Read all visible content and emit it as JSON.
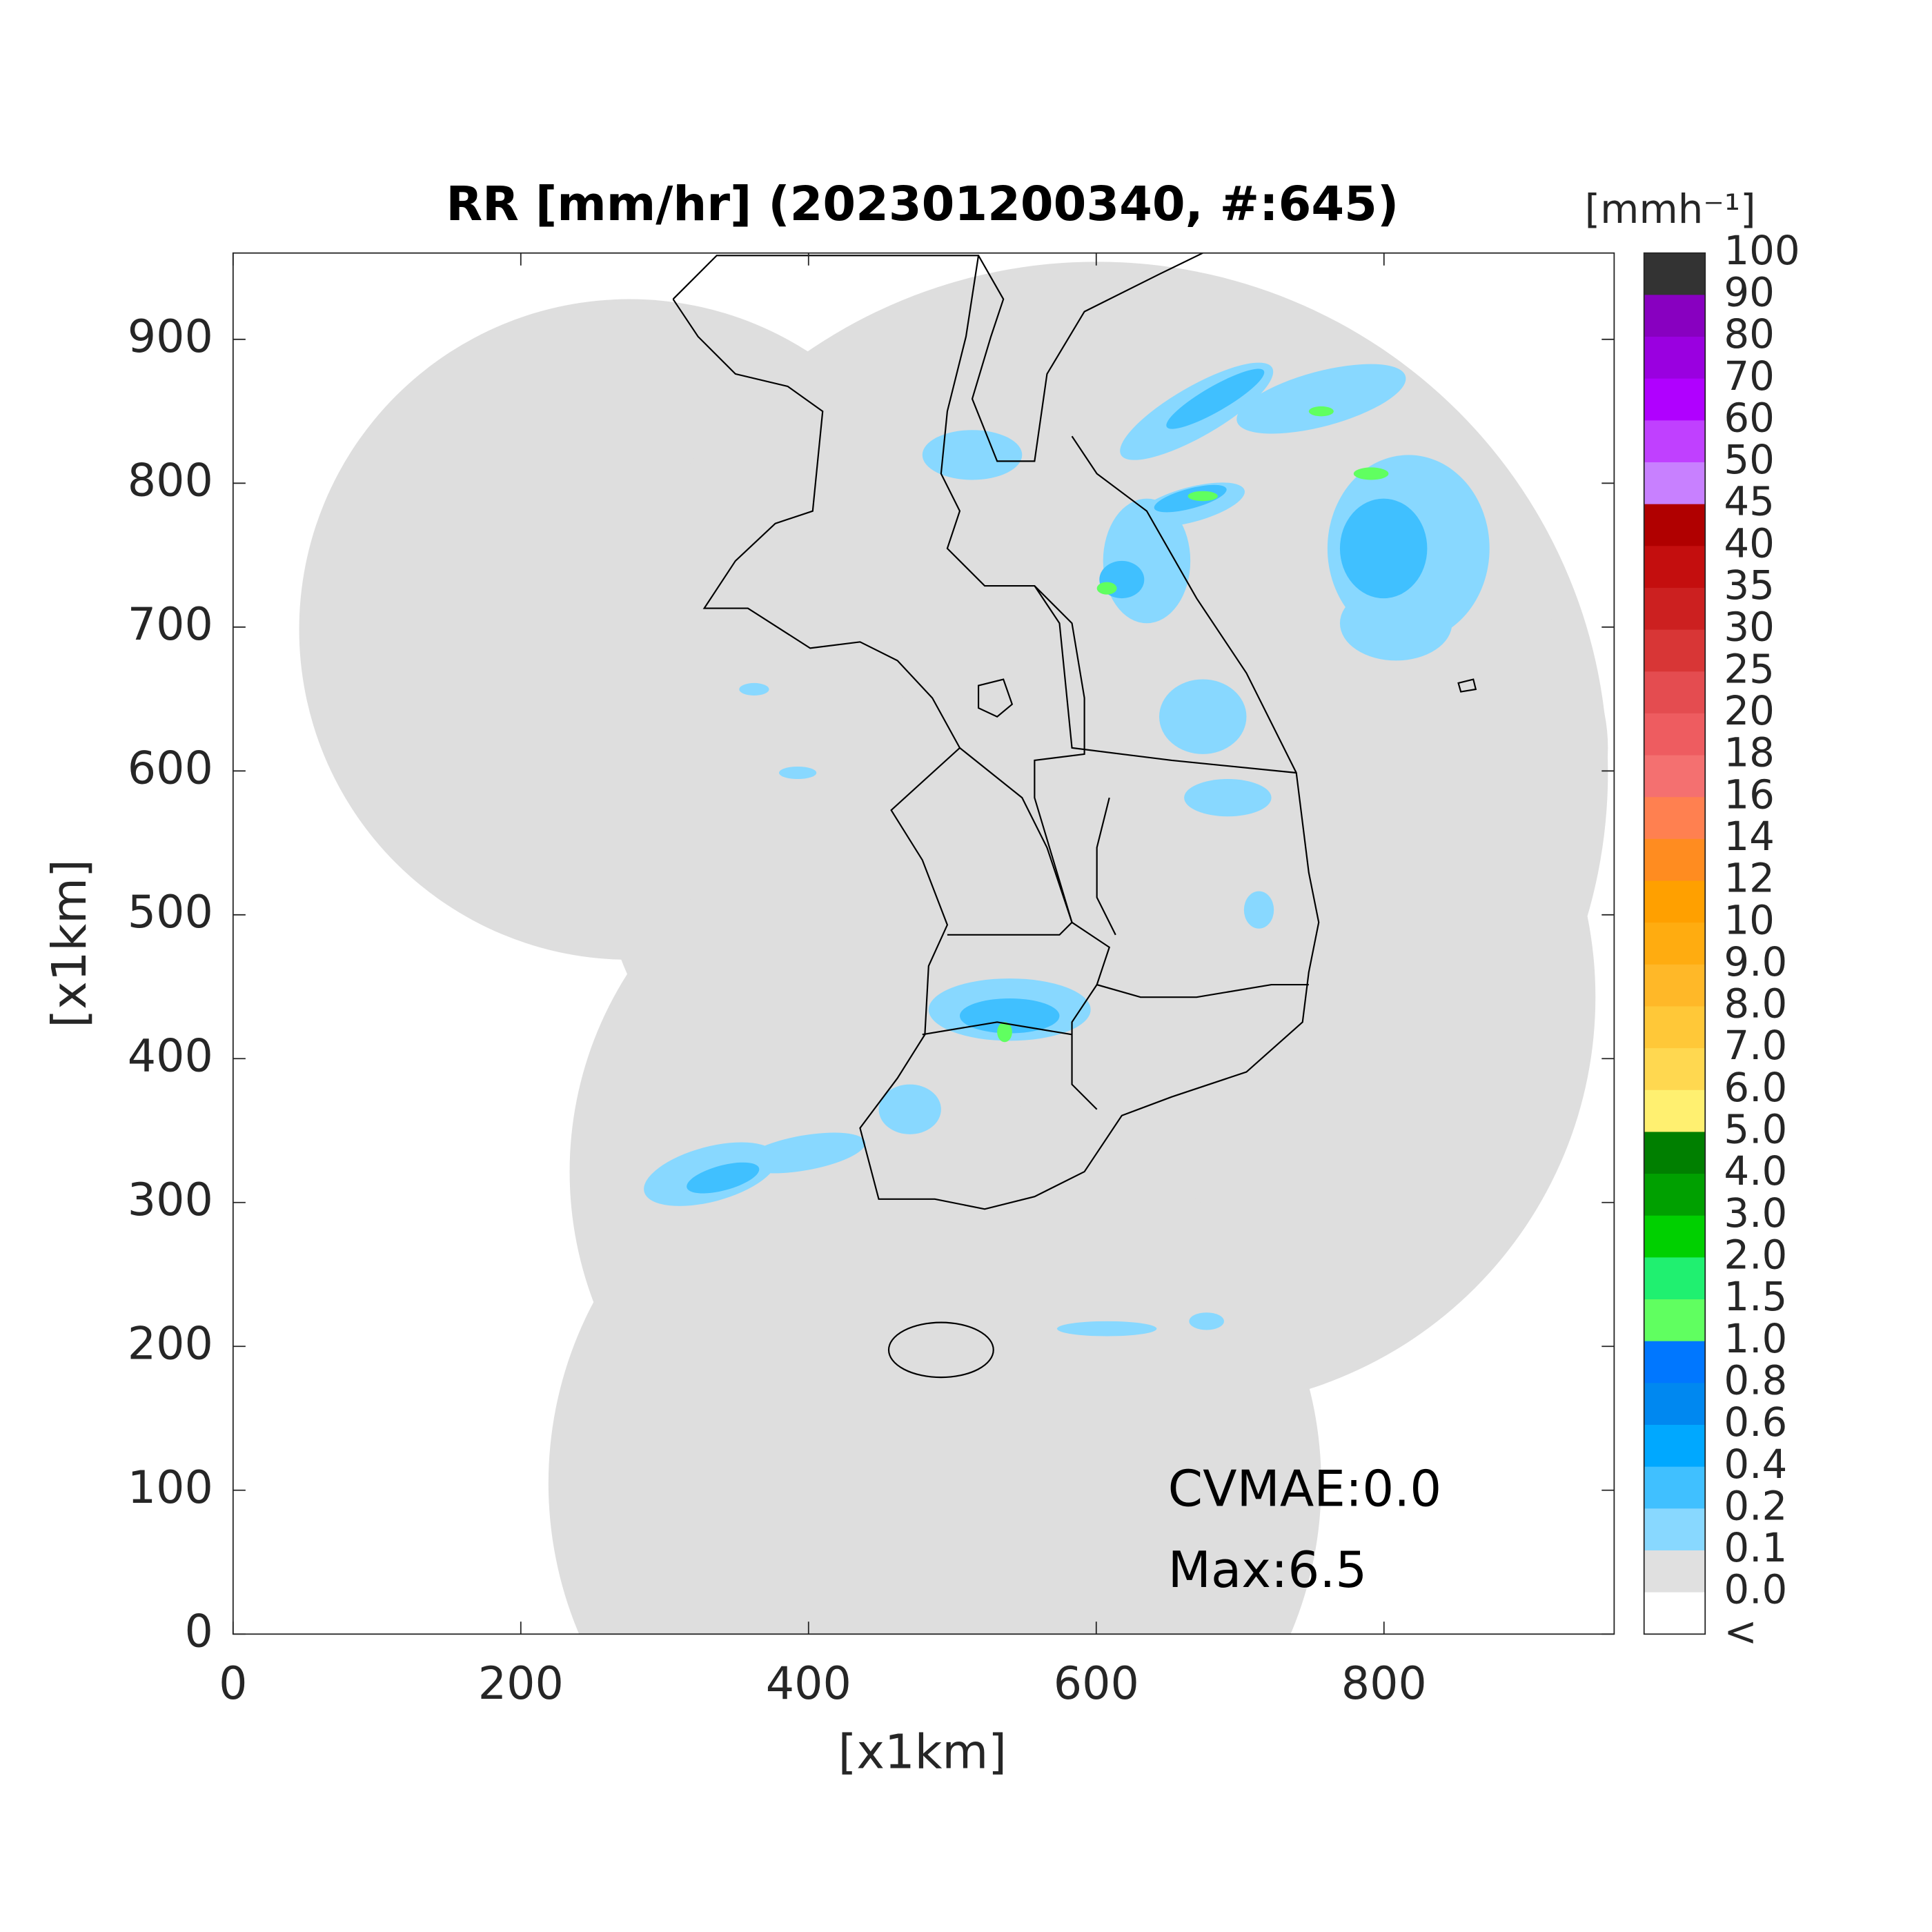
{
  "chart_data": {
    "type": "map",
    "title": "RR [mm/hr] (202301200340, #:645)",
    "xlabel": "[x1km]",
    "ylabel": "[x1km]",
    "xlim": [
      0,
      960
    ],
    "ylim": [
      0,
      960
    ],
    "xticks": [
      0,
      200,
      400,
      600,
      800
    ],
    "yticks": [
      0,
      100,
      200,
      300,
      400,
      500,
      600,
      700,
      800,
      900
    ],
    "annotations": [
      "CVMAE:0.0",
      "Max:6.5"
    ],
    "colorbar": {
      "label": "[mmh⁻¹]",
      "ticks": [
        "100",
        "90",
        "80",
        "70",
        "60",
        "50",
        "45",
        "40",
        "35",
        "30",
        "25",
        "20",
        "18",
        "16",
        "14",
        "12",
        "10",
        "9.0",
        "8.0",
        "7.0",
        "6.0",
        "5.0",
        "4.0",
        "3.0",
        "2.0",
        "1.5",
        "1.0",
        "0.8",
        "0.6",
        "0.4",
        "0.2",
        "0.1",
        "0.0",
        "<"
      ],
      "colors": [
        "#333333",
        "#8800c0",
        "#9a00e0",
        "#b000ff",
        "#c040ff",
        "#c880ff",
        "#b00000",
        "#c40e0e",
        "#cc2020",
        "#d83636",
        "#e44c50",
        "#ee5c60",
        "#f47070",
        "#ff8050",
        "#ff8c20",
        "#ffa000",
        "#ffac10",
        "#ffb828",
        "#ffc838",
        "#ffd850",
        "#fff070",
        "#007f00",
        "#00a000",
        "#00d000",
        "#20f070",
        "#60ff60",
        "#0077ff",
        "#0088f0",
        "#00a8ff",
        "#40c0ff",
        "#88d8ff",
        "#e0e0e0",
        "#ffffff"
      ]
    }
  }
}
